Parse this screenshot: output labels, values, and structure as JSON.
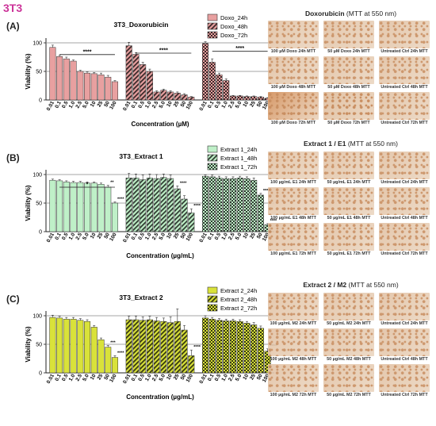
{
  "figure": {
    "title": "3T3"
  },
  "panels": [
    {
      "letter": "(A)",
      "image_title_bold": "Doxorubicin",
      "image_title_normal": "(MTT at 550 nm)"
    },
    {
      "letter": "(B)",
      "image_title_bold": "Extract 1 / E1",
      "image_title_normal": "(MTT at 550 nm)"
    },
    {
      "letter": "(C)",
      "image_title_bold": "Extract 2 / M2",
      "image_title_normal": "(MTT at 550 nm)"
    }
  ],
  "images": [
    [
      "100 µM Doxo 24h MTT",
      "50 µM Doxo 24h MTT",
      "Untreated Ctrl 24h MTT",
      "100 µM Doxo 48h MTT",
      "50 µM Doxo 48h MTT",
      "Untreated Ctrl 48h MTT",
      "100 µM Doxo 72h MTT",
      "50 µM Doxo 72h MTT",
      "Untreated Ctrl 72h MTT"
    ],
    [
      "100 µg/mL E1 24h MTT",
      "50 µg/mL E1 24h MTT",
      "Untreated Ctrl 24h MTT",
      "100 µg/mL E1 48h MTT",
      "50 µg/mL E1 48h MTT",
      "Untreated Ctrl 48h MTT",
      "100 µg/mL E1 72h MTT",
      "50 µg/mL E1 72h MTT",
      "Untreated Ctrl 72h MTT"
    ],
    [
      "100 µg/mL M2 24h MTT",
      "50 µg/mL M2 24h MTT",
      "Untreated Ctrl 24h MTT",
      "100 µg/mL M2 48h MTT",
      "50 µg/mL M2 48h MTT",
      "Untreated Ctrl 48h MTT",
      "100 µg/mL M2 72h MTT",
      "50 µg/mL M2 72h MTT",
      "Untreated Ctrl 72h MTT"
    ]
  ],
  "colors": {
    "title": "#cc3399",
    "photo_base": "#e2c3a6",
    "photo_dark": "#c98f62",
    "hline": "#888888"
  },
  "chart_data": [
    {
      "type": "bar",
      "title": "3T3_Doxorubicin",
      "ylabel": "Viability (%)",
      "xlabel": "Concentration (µM)",
      "ylim": [
        0,
        100
      ],
      "yticks": [
        0,
        50,
        100
      ],
      "categories": [
        "0.01",
        "0.1",
        "0.5",
        "1.0",
        "2.5",
        "5.0",
        "10",
        "25",
        "50",
        "100"
      ],
      "color": "#e8a0a0",
      "series": [
        {
          "name": "Doxo_24h",
          "pattern": "solid",
          "values": [
            92,
            76,
            72,
            68,
            50,
            47,
            46,
            44,
            40,
            32
          ],
          "errors": [
            4,
            2,
            3,
            2,
            2,
            2,
            2,
            3,
            3,
            2
          ]
        },
        {
          "name": "Doxo_48h",
          "pattern": "stripe",
          "values": [
            95,
            80,
            62,
            50,
            14,
            17,
            14,
            12,
            9,
            5
          ],
          "errors": [
            6,
            3,
            4,
            4,
            2,
            2,
            2,
            2,
            2,
            1
          ]
        },
        {
          "name": "Doxo_72h",
          "pattern": "check",
          "values": [
            99,
            66,
            44,
            34,
            7,
            7,
            6,
            6,
            5,
            3
          ],
          "errors": [
            3,
            6,
            3,
            3,
            1,
            1,
            1,
            1,
            1,
            1
          ]
        }
      ],
      "significance_brackets": [
        "****",
        "****",
        "****"
      ],
      "bar_marks": []
    },
    {
      "type": "bar",
      "title": "3T3_Extract 1",
      "ylabel": "Viability (%)",
      "xlabel": "Concentration (µg/mL)",
      "ylim": [
        0,
        100
      ],
      "yticks": [
        0,
        50,
        100
      ],
      "categories": [
        "0.01",
        "0.1",
        "0.5",
        "1.0",
        "2.5",
        "5.0",
        "10",
        "25",
        "50",
        "100"
      ],
      "color": "#bff0c8",
      "series": [
        {
          "name": "Extract 1_24h",
          "pattern": "solid",
          "values": [
            90,
            89,
            87,
            86,
            86,
            85,
            85,
            83,
            78,
            50
          ],
          "errors": [
            2,
            2,
            2,
            2,
            2,
            2,
            2,
            2,
            3,
            2
          ]
        },
        {
          "name": "Extract 1_48h",
          "pattern": "stripe",
          "values": [
            94,
            94,
            91,
            94,
            93,
            95,
            93,
            75,
            57,
            33
          ],
          "errors": [
            8,
            7,
            8,
            7,
            7,
            6,
            6,
            5,
            6,
            7
          ]
        },
        {
          "name": "Extract 1_72h",
          "pattern": "check",
          "values": [
            97,
            96,
            94,
            93,
            93,
            94,
            93,
            90,
            64,
            12
          ],
          "errors": [
            2,
            3,
            3,
            3,
            3,
            3,
            3,
            4,
            3,
            2
          ]
        }
      ],
      "significance_brackets": [
        "*"
      ],
      "bar_marks": [
        {
          "series": 0,
          "index": 8,
          "label": "**"
        },
        {
          "series": 0,
          "index": 9,
          "label": "****"
        },
        {
          "series": 1,
          "index": 7,
          "label": "****"
        },
        {
          "series": 1,
          "index": 9,
          "label": "****"
        },
        {
          "series": 2,
          "index": 8,
          "label": "****"
        },
        {
          "series": 2,
          "index": 9,
          "label": "****"
        }
      ]
    },
    {
      "type": "bar",
      "title": "3T3_Extract 2",
      "ylabel": "Viability (%)",
      "xlabel": "Concentration (µg/mL)",
      "ylim": [
        0,
        100
      ],
      "yticks": [
        0,
        50,
        100
      ],
      "categories": [
        "0.01",
        "0.1",
        "0.5",
        "1.0",
        "2.5",
        "5.0",
        "10",
        "25",
        "50",
        "100"
      ],
      "color": "#d9e23a",
      "series": [
        {
          "name": "Extract 2_24h",
          "pattern": "solid",
          "values": [
            97,
            96,
            94,
            94,
            92,
            90,
            80,
            58,
            45,
            27
          ],
          "errors": [
            4,
            3,
            3,
            3,
            3,
            3,
            3,
            3,
            3,
            3
          ]
        },
        {
          "name": "Extract 2_48h",
          "pattern": "stripe",
          "values": [
            93,
            93,
            92,
            93,
            91,
            90,
            88,
            90,
            75,
            30
          ],
          "errors": [
            6,
            6,
            6,
            6,
            6,
            6,
            10,
            22,
            8,
            10
          ]
        },
        {
          "name": "Extract 2_72h",
          "pattern": "check",
          "values": [
            96,
            94,
            92,
            91,
            91,
            90,
            87,
            84,
            78,
            38
          ],
          "errors": [
            4,
            3,
            3,
            3,
            3,
            3,
            3,
            4,
            4,
            4
          ]
        }
      ],
      "significance_brackets": [],
      "bar_marks": [
        {
          "series": 0,
          "index": 8,
          "label": "***"
        },
        {
          "series": 0,
          "index": 9,
          "label": "****"
        },
        {
          "series": 1,
          "index": 9,
          "label": "****"
        },
        {
          "series": 2,
          "index": 9,
          "label": "****"
        }
      ]
    }
  ]
}
